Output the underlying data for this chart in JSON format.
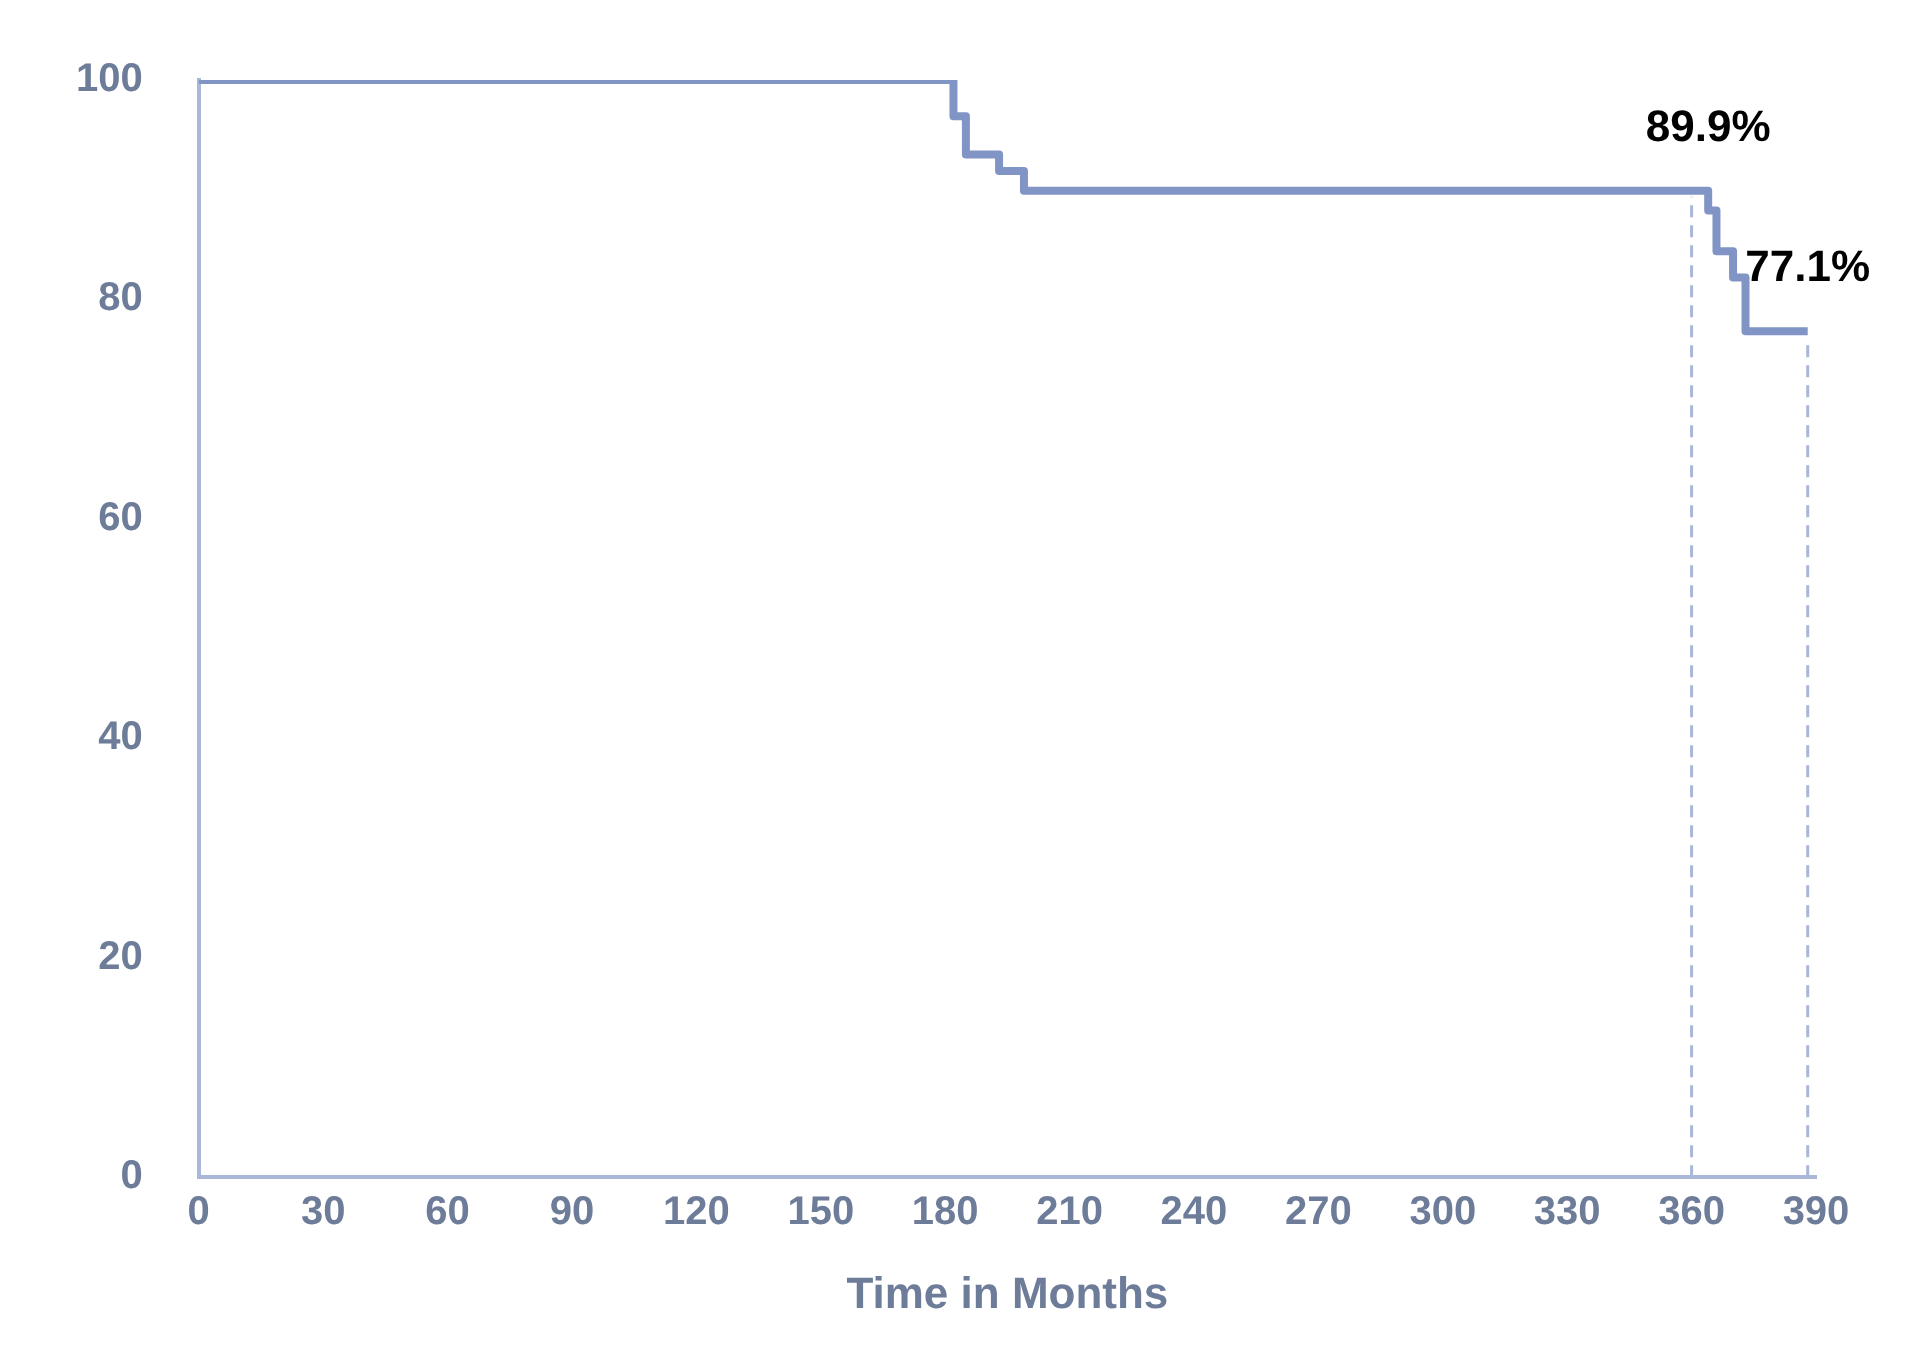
{
  "chart_data": {
    "type": "step",
    "xlabel": "Time in Months",
    "series": [
      {
        "color": "#8095c6",
        "x": [
          0,
          182,
          185,
          193,
          199,
          364,
          366,
          370,
          373,
          388
        ],
        "values": [
          100,
          96.7,
          93.2,
          91.7,
          89.9,
          88.1,
          84.4,
          82,
          77.1,
          77.1
        ]
      }
    ],
    "xlim": [
      0,
      390
    ],
    "xticks": [
      0,
      30,
      60,
      90,
      120,
      150,
      180,
      210,
      240,
      270,
      300,
      330,
      360,
      390
    ],
    "ylim": [
      0,
      100
    ],
    "yticks": [
      0,
      20,
      40,
      60,
      80,
      100
    ],
    "ref_lines": [
      {
        "axis": "x",
        "value": 360,
        "color": "#a9b8d8",
        "line_style": "dashed"
      },
      {
        "axis": "x",
        "value": 388,
        "color": "#a9b8d8",
        "line_style": "dashed"
      }
    ],
    "annotations": [
      {
        "text": "89.9%",
        "x": 364,
        "y": 89.9
      },
      {
        "text": "77.1%",
        "x": 388,
        "y": 77.1
      }
    ],
    "grid": false,
    "legend": false,
    "marker": "none",
    "line_style": "solid"
  }
}
